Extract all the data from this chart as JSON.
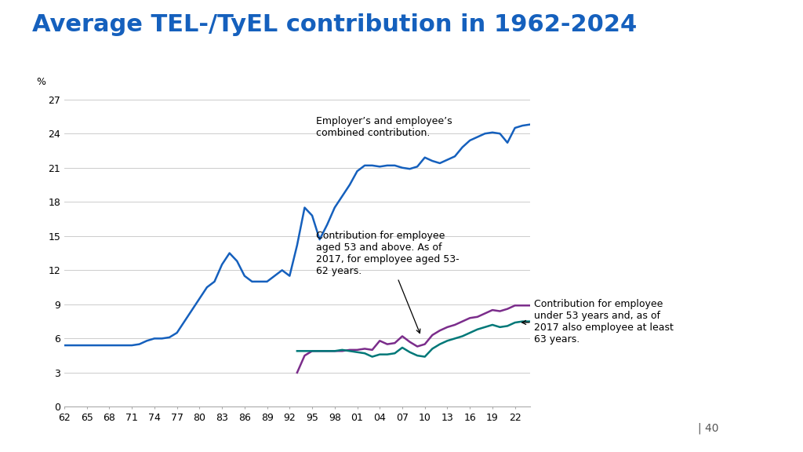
{
  "title": "Average TEL-/TyEL contribution in 1962-2024",
  "title_color": "#1560bd",
  "title_fontsize": 22,
  "background_color": "#ffffff",
  "sidebar_color": "#1560bd",
  "ylabel": "%",
  "ylim": [
    0,
    27
  ],
  "yticks": [
    0,
    3,
    6,
    9,
    12,
    15,
    18,
    21,
    24,
    27
  ],
  "xtick_labels": [
    "62",
    "65",
    "68",
    "71",
    "74",
    "77",
    "80",
    "83",
    "86",
    "89",
    "92",
    "95",
    "98",
    "01",
    "04",
    "07",
    "10",
    "13",
    "16",
    "19",
    "22"
  ],
  "blue_color": "#1560bd",
  "purple_color": "#7b2d8b",
  "teal_color": "#007878",
  "grid_color": "#cccccc",
  "annotation_fontsize": 9,
  "page_number": "| 40",
  "blue_line": {
    "years": [
      1962,
      1963,
      1964,
      1965,
      1966,
      1967,
      1968,
      1969,
      1970,
      1971,
      1972,
      1973,
      1974,
      1975,
      1976,
      1977,
      1978,
      1979,
      1980,
      1981,
      1982,
      1983,
      1984,
      1985,
      1986,
      1987,
      1988,
      1989,
      1990,
      1991,
      1992,
      1993,
      1994,
      1995,
      1996,
      1997,
      1998,
      1999,
      2000,
      2001,
      2002,
      2003,
      2004,
      2005,
      2006,
      2007,
      2008,
      2009,
      2010,
      2011,
      2012,
      2013,
      2014,
      2015,
      2016,
      2017,
      2018,
      2019,
      2020,
      2021,
      2022,
      2023,
      2024
    ],
    "values": [
      5.4,
      5.4,
      5.4,
      5.4,
      5.4,
      5.4,
      5.4,
      5.4,
      5.4,
      5.4,
      5.5,
      5.8,
      6.0,
      6.0,
      6.1,
      6.5,
      7.5,
      8.5,
      9.5,
      10.5,
      11.0,
      12.5,
      13.5,
      12.8,
      11.5,
      11.0,
      11.0,
      11.0,
      11.5,
      12.0,
      11.5,
      14.2,
      17.5,
      16.8,
      14.7,
      16.0,
      17.5,
      18.5,
      19.5,
      20.7,
      21.2,
      21.2,
      21.1,
      21.2,
      21.2,
      21.0,
      20.9,
      21.1,
      21.9,
      21.6,
      21.4,
      21.7,
      22.0,
      22.8,
      23.4,
      23.7,
      24.0,
      24.1,
      24.0,
      23.2,
      24.5,
      24.7,
      24.8
    ]
  },
  "purple_line": {
    "years": [
      1993,
      1994,
      1995,
      1996,
      1997,
      1998,
      1999,
      2000,
      2001,
      2002,
      2003,
      2004,
      2005,
      2006,
      2007,
      2008,
      2009,
      2010,
      2011,
      2012,
      2013,
      2014,
      2015,
      2016,
      2017,
      2018,
      2019,
      2020,
      2021,
      2022,
      2023,
      2024
    ],
    "values": [
      3.0,
      4.5,
      4.9,
      4.9,
      4.9,
      4.9,
      4.9,
      5.0,
      5.0,
      5.1,
      5.0,
      5.8,
      5.5,
      5.6,
      6.2,
      5.7,
      5.3,
      5.5,
      6.3,
      6.7,
      7.0,
      7.2,
      7.5,
      7.8,
      7.9,
      8.2,
      8.5,
      8.4,
      8.6,
      8.9,
      8.9,
      8.9
    ]
  },
  "teal_line": {
    "years": [
      1993,
      1994,
      1995,
      1996,
      1997,
      1998,
      1999,
      2000,
      2001,
      2002,
      2003,
      2004,
      2005,
      2006,
      2007,
      2008,
      2009,
      2010,
      2011,
      2012,
      2013,
      2014,
      2015,
      2016,
      2017,
      2018,
      2019,
      2020,
      2021,
      2022,
      2023,
      2024
    ],
    "values": [
      4.9,
      4.9,
      4.9,
      4.9,
      4.9,
      4.9,
      5.0,
      4.9,
      4.8,
      4.7,
      4.4,
      4.6,
      4.6,
      4.7,
      5.2,
      4.8,
      4.5,
      4.4,
      5.1,
      5.5,
      5.8,
      6.0,
      6.2,
      6.5,
      6.8,
      7.0,
      7.2,
      7.0,
      7.1,
      7.4,
      7.5,
      7.5
    ]
  }
}
